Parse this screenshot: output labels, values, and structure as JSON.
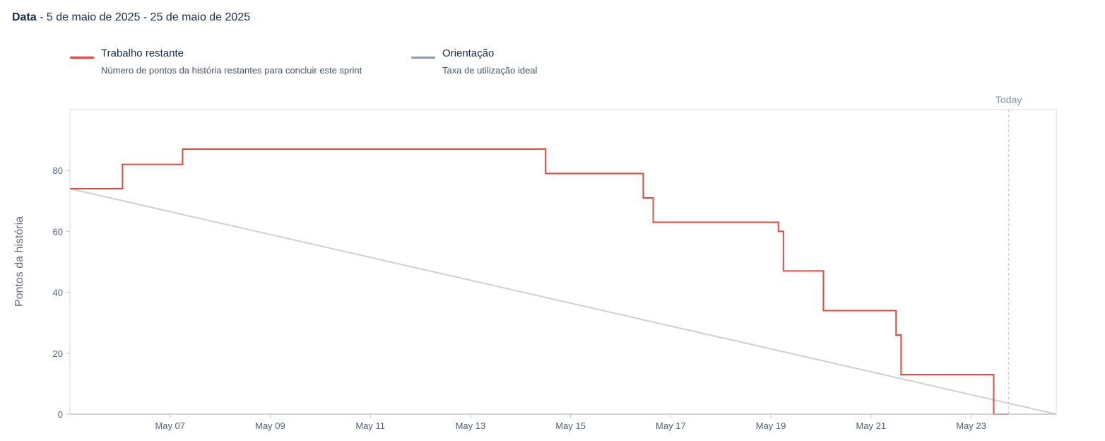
{
  "header": {
    "date_label": "Data",
    "date_range": " - 5 de maio de 2025 - 25 de maio de 2025"
  },
  "legend": {
    "items": [
      {
        "title": "Trabalho restante",
        "description": "Número de pontos da história restantes para concluir este sprint",
        "color": "#e2483d"
      },
      {
        "title": "Orientação",
        "description": "Taxa de utilização ideal",
        "color": "#8c9bab"
      }
    ]
  },
  "chart_data": {
    "type": "line",
    "ylabel": "Pontos da história",
    "xlabel": "",
    "x_tick_labels": [
      "May 07",
      "May 09",
      "May 11",
      "May 13",
      "May 15",
      "May 17",
      "May 19",
      "May 21",
      "May 23"
    ],
    "x_ticks": [
      2.0,
      4.0,
      6.0,
      8.0,
      10.0,
      12.0,
      14.0,
      16.0,
      18.0
    ],
    "xlim": [
      0,
      19.7
    ],
    "y_ticks": [
      0,
      20,
      40,
      60,
      80
    ],
    "ylim": [
      0,
      100
    ],
    "today_label": "Today",
    "today_x": 18.75,
    "series": [
      {
        "name": "Trabalho restante",
        "color": "#e2483d",
        "step": true,
        "points": [
          [
            0.0,
            74
          ],
          [
            1.05,
            82
          ],
          [
            2.25,
            87
          ],
          [
            9.5,
            79
          ],
          [
            11.45,
            71
          ],
          [
            11.65,
            63
          ],
          [
            14.15,
            60
          ],
          [
            14.25,
            47
          ],
          [
            15.05,
            34
          ],
          [
            16.5,
            26
          ],
          [
            16.6,
            13
          ],
          [
            18.45,
            0
          ],
          [
            18.75,
            0
          ]
        ]
      },
      {
        "name": "Orientação",
        "color": "#d0d0d0",
        "step": false,
        "points": [
          [
            0.0,
            74
          ],
          [
            19.7,
            0
          ]
        ]
      }
    ]
  }
}
